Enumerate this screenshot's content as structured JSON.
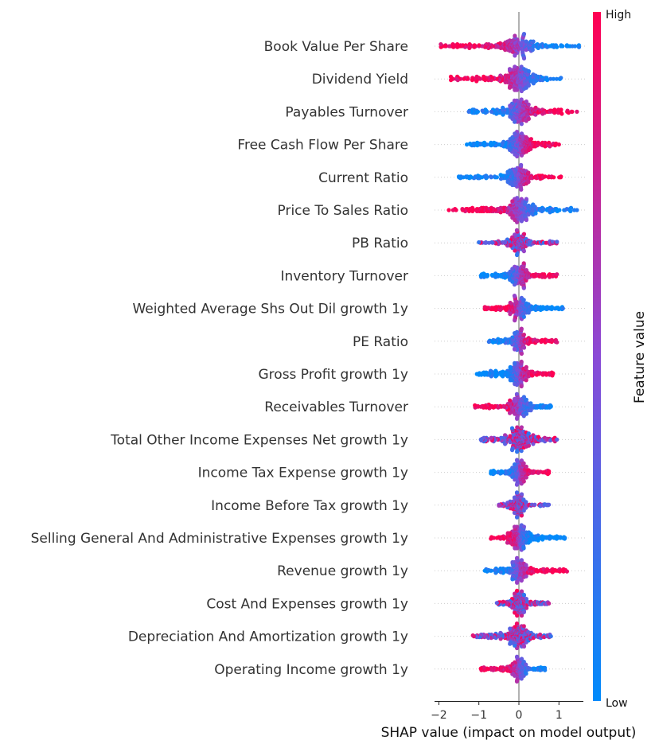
{
  "chart_data": {
    "type": "scatter",
    "subtype": "beeswarm",
    "title": "",
    "xlabel": "SHAP value (impact on model output)",
    "xlim": [
      -2.2,
      1.65
    ],
    "xticks": [
      -2,
      -1,
      0,
      1
    ],
    "xtick_labels": [
      "−2",
      "−1",
      "0",
      "1"
    ],
    "colorbar": {
      "label": "Feature value",
      "high_label": "High",
      "low_label": "Low",
      "high_color": "#ff0052",
      "low_color": "#008bfb",
      "mid_color": "#8a4ad6"
    },
    "grid": false,
    "features": [
      {
        "name": "Book Value Per Share",
        "shap_range": [
          -1.95,
          1.5
        ],
        "high_side": "left"
      },
      {
        "name": "Dividend Yield",
        "shap_range": [
          -1.7,
          1.05
        ],
        "high_side": "left"
      },
      {
        "name": "Payables Turnover",
        "shap_range": [
          -1.25,
          1.45
        ],
        "high_side": "right"
      },
      {
        "name": "Free Cash Flow Per Share",
        "shap_range": [
          -1.3,
          1.0
        ],
        "high_side": "right"
      },
      {
        "name": "Current Ratio",
        "shap_range": [
          -1.5,
          1.05
        ],
        "high_side": "right"
      },
      {
        "name": "Price To Sales Ratio",
        "shap_range": [
          -1.75,
          1.45
        ],
        "high_side": "left"
      },
      {
        "name": "PB Ratio",
        "shap_range": [
          -1.0,
          0.95
        ],
        "high_side": "mixed"
      },
      {
        "name": "Inventory Turnover",
        "shap_range": [
          -0.95,
          0.95
        ],
        "high_side": "right"
      },
      {
        "name": "Weighted Average Shs Out Dil growth 1y",
        "shap_range": [
          -0.85,
          1.1
        ],
        "high_side": "left"
      },
      {
        "name": "PE Ratio",
        "shap_range": [
          -0.75,
          0.95
        ],
        "high_side": "right"
      },
      {
        "name": "Gross Profit growth 1y",
        "shap_range": [
          -1.05,
          0.85
        ],
        "high_side": "right"
      },
      {
        "name": "Receivables Turnover",
        "shap_range": [
          -1.1,
          0.8
        ],
        "high_side": "left"
      },
      {
        "name": "Total Other Income Expenses Net growth 1y",
        "shap_range": [
          -0.95,
          0.95
        ],
        "high_side": "mixed"
      },
      {
        "name": "Income Tax Expense growth 1y",
        "shap_range": [
          -0.7,
          0.75
        ],
        "high_side": "right"
      },
      {
        "name": "Income Before Tax growth 1y",
        "shap_range": [
          -0.5,
          0.75
        ],
        "high_side": "mixed"
      },
      {
        "name": "Selling General And Administrative Expenses growth 1y",
        "shap_range": [
          -0.7,
          1.15
        ],
        "high_side": "left"
      },
      {
        "name": "Revenue growth 1y",
        "shap_range": [
          -0.85,
          1.2
        ],
        "high_side": "right"
      },
      {
        "name": "Cost And Expenses growth 1y",
        "shap_range": [
          -0.55,
          0.75
        ],
        "high_side": "mixed"
      },
      {
        "name": "Depreciation And Amortization growth 1y",
        "shap_range": [
          -1.15,
          0.8
        ],
        "high_side": "mixed"
      },
      {
        "name": "Operating Income growth 1y",
        "shap_range": [
          -0.95,
          0.65
        ],
        "high_side": "left"
      }
    ]
  }
}
